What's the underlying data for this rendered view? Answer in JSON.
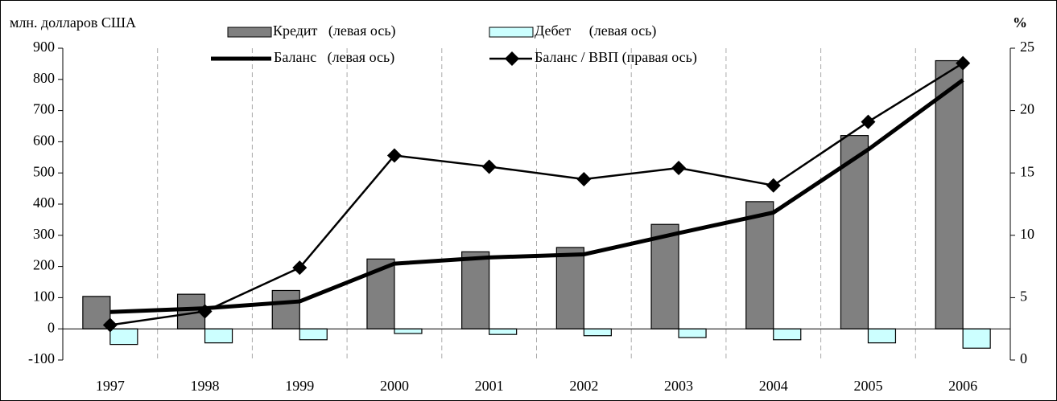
{
  "chart_data": {
    "type": "bar",
    "y_label": "млн. долларов США",
    "y2_label": "%",
    "categories": [
      "1997",
      "1998",
      "1999",
      "2000",
      "2001",
      "2002",
      "2003",
      "2004",
      "2005",
      "2006"
    ],
    "series": [
      {
        "name": "Кредит   (левая ось)",
        "type": "bar",
        "color": "#808080",
        "values": [
          104,
          111,
          123,
          224,
          247,
          261,
          335,
          408,
          620,
          860
        ]
      },
      {
        "name": "Дебет     (левая ось)",
        "type": "bar",
        "color": "#ccffff",
        "values": [
          -50,
          -45,
          -35,
          -15,
          -18,
          -22,
          -28,
          -35,
          -45,
          -62
        ]
      },
      {
        "name": "Баланс   (левая ось)",
        "type": "line",
        "color": "#000000",
        "values": [
          54,
          66,
          88,
          209,
          229,
          239,
          307,
          373,
          575,
          798
        ]
      },
      {
        "name": "Баланс / ВВП (правая ось)",
        "type": "line-marker",
        "axis": "y2",
        "color": "#000000",
        "values": [
          2.8,
          3.9,
          7.4,
          16.4,
          15.5,
          14.5,
          15.4,
          14.0,
          19.1,
          23.8
        ]
      }
    ],
    "ylim": [
      -100,
      900
    ],
    "yticks": [
      -100,
      0,
      100,
      200,
      300,
      400,
      500,
      600,
      700,
      800,
      900
    ],
    "y2lim": [
      0,
      25
    ],
    "y2ticks": [
      0,
      5,
      10,
      15,
      20,
      25
    ],
    "grid": true
  }
}
